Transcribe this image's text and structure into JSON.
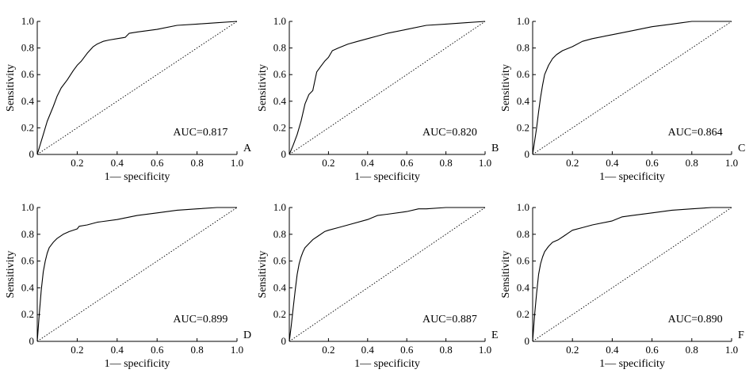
{
  "figure": {
    "panels": [
      "A",
      "B",
      "C",
      "D",
      "E",
      "F"
    ]
  },
  "chart_data": [
    {
      "type": "line",
      "panel_label": "A",
      "auc_label": "AUC=0.817",
      "xlabel": "1— specificity",
      "ylabel": "Sensitivity",
      "xlim": [
        0,
        1
      ],
      "ylim": [
        0,
        1
      ],
      "x_ticks": [
        "0.2",
        "0.4",
        "0.6",
        "0.8",
        "1.0"
      ],
      "y_ticks": [
        "0",
        "0.2",
        "0.4",
        "0.6",
        "0.8",
        "1.0"
      ],
      "grid": false,
      "series": [
        {
          "name": "ROC",
          "style": "solid",
          "x": [
            0,
            0.01,
            0.03,
            0.05,
            0.08,
            0.1,
            0.12,
            0.15,
            0.18,
            0.2,
            0.22,
            0.25,
            0.28,
            0.3,
            0.33,
            0.36,
            0.4,
            0.44,
            0.46,
            0.5,
            0.6,
            0.7,
            0.8,
            0.9,
            1.0
          ],
          "y": [
            0,
            0.05,
            0.15,
            0.25,
            0.36,
            0.44,
            0.5,
            0.56,
            0.63,
            0.67,
            0.7,
            0.76,
            0.81,
            0.83,
            0.85,
            0.86,
            0.87,
            0.88,
            0.91,
            0.92,
            0.94,
            0.97,
            0.98,
            0.99,
            1.0
          ]
        },
        {
          "name": "reference",
          "style": "dotted",
          "x": [
            0,
            1
          ],
          "y": [
            0,
            1
          ]
        }
      ]
    },
    {
      "type": "line",
      "panel_label": "B",
      "auc_label": "AUC=0.820",
      "xlabel": "1— specificity",
      "ylabel": "Sensitivity",
      "xlim": [
        0,
        1
      ],
      "ylim": [
        0,
        1
      ],
      "x_ticks": [
        "0.2",
        "0.4",
        "0.6",
        "0.8",
        "1.0"
      ],
      "y_ticks": [
        "0",
        "0.2",
        "0.4",
        "0.6",
        "0.8",
        "1.0"
      ],
      "grid": false,
      "series": [
        {
          "name": "ROC",
          "style": "solid",
          "x": [
            0,
            0.02,
            0.04,
            0.06,
            0.08,
            0.1,
            0.12,
            0.14,
            0.16,
            0.18,
            0.2,
            0.22,
            0.25,
            0.3,
            0.35,
            0.4,
            0.45,
            0.5,
            0.6,
            0.7,
            0.8,
            0.9,
            1.0
          ],
          "y": [
            0,
            0.07,
            0.15,
            0.25,
            0.38,
            0.45,
            0.48,
            0.62,
            0.66,
            0.7,
            0.73,
            0.78,
            0.8,
            0.83,
            0.85,
            0.87,
            0.89,
            0.91,
            0.94,
            0.97,
            0.98,
            0.99,
            1.0
          ]
        },
        {
          "name": "reference",
          "style": "dotted",
          "x": [
            0,
            1
          ],
          "y": [
            0,
            1
          ]
        }
      ]
    },
    {
      "type": "line",
      "panel_label": "C",
      "auc_label": "AUC=0.864",
      "xlabel": "1— specificity",
      "ylabel": "Sensitivity",
      "xlim": [
        0,
        1
      ],
      "ylim": [
        0,
        1
      ],
      "x_ticks": [
        "0.2",
        "0.4",
        "0.6",
        "0.8",
        "1.0"
      ],
      "y_ticks": [
        "0",
        "0.2",
        "0.4",
        "0.6",
        "0.8",
        "1.0"
      ],
      "grid": false,
      "series": [
        {
          "name": "ROC",
          "style": "solid",
          "x": [
            0,
            0.01,
            0.02,
            0.03,
            0.04,
            0.05,
            0.06,
            0.08,
            0.1,
            0.12,
            0.15,
            0.2,
            0.25,
            0.3,
            0.4,
            0.5,
            0.6,
            0.7,
            0.75,
            0.8,
            0.9,
            1.0
          ],
          "y": [
            0,
            0.1,
            0.2,
            0.32,
            0.43,
            0.52,
            0.6,
            0.67,
            0.72,
            0.75,
            0.78,
            0.81,
            0.85,
            0.87,
            0.9,
            0.93,
            0.96,
            0.98,
            0.99,
            1.0,
            1.0,
            1.0
          ]
        },
        {
          "name": "reference",
          "style": "dotted",
          "x": [
            0,
            1
          ],
          "y": [
            0,
            1
          ]
        }
      ]
    },
    {
      "type": "line",
      "panel_label": "D",
      "auc_label": "AUC=0.899",
      "xlabel": "1— specificity",
      "ylabel": "Sensitivity",
      "xlim": [
        0,
        1
      ],
      "ylim": [
        0,
        1
      ],
      "x_ticks": [
        "0.2",
        "0.4",
        "0.6",
        "0.8",
        "1.0"
      ],
      "y_ticks": [
        "0",
        "0.2",
        "0.4",
        "0.6",
        "0.8",
        "1.0"
      ],
      "grid": false,
      "series": [
        {
          "name": "ROC",
          "style": "solid",
          "x": [
            0,
            0.01,
            0.02,
            0.03,
            0.04,
            0.05,
            0.06,
            0.08,
            0.1,
            0.13,
            0.16,
            0.2,
            0.21,
            0.25,
            0.3,
            0.4,
            0.5,
            0.6,
            0.7,
            0.8,
            0.9,
            1.0
          ],
          "y": [
            0,
            0.2,
            0.38,
            0.52,
            0.6,
            0.66,
            0.7,
            0.74,
            0.77,
            0.8,
            0.82,
            0.84,
            0.86,
            0.87,
            0.89,
            0.91,
            0.94,
            0.96,
            0.98,
            0.99,
            1.0,
            1.0
          ]
        },
        {
          "name": "reference",
          "style": "dotted",
          "x": [
            0,
            1
          ],
          "y": [
            0,
            1
          ]
        }
      ]
    },
    {
      "type": "line",
      "panel_label": "E",
      "auc_label": "AUC=0.887",
      "xlabel": "1— specificity",
      "ylabel": "Sensitivity",
      "xlim": [
        0,
        1
      ],
      "ylim": [
        0,
        1
      ],
      "x_ticks": [
        "0.2",
        "0.4",
        "0.6",
        "0.8",
        "1.0"
      ],
      "y_ticks": [
        "0",
        "0.2",
        "0.4",
        "0.6",
        "0.8",
        "1.0"
      ],
      "grid": false,
      "series": [
        {
          "name": "ROC",
          "style": "solid",
          "x": [
            0,
            0.01,
            0.02,
            0.03,
            0.04,
            0.05,
            0.06,
            0.07,
            0.08,
            0.1,
            0.12,
            0.15,
            0.18,
            0.2,
            0.25,
            0.3,
            0.4,
            0.45,
            0.5,
            0.6,
            0.66,
            0.7,
            0.8,
            0.9,
            1.0
          ],
          "y": [
            0,
            0.12,
            0.25,
            0.38,
            0.5,
            0.58,
            0.63,
            0.67,
            0.7,
            0.73,
            0.76,
            0.79,
            0.82,
            0.83,
            0.85,
            0.87,
            0.91,
            0.94,
            0.95,
            0.97,
            0.99,
            0.99,
            1.0,
            1.0,
            1.0
          ]
        },
        {
          "name": "reference",
          "style": "dotted",
          "x": [
            0,
            1
          ],
          "y": [
            0,
            1
          ]
        }
      ]
    },
    {
      "type": "line",
      "panel_label": "F",
      "auc_label": "AUC=0.890",
      "xlabel": "1— specificity",
      "ylabel": "Sensitivity",
      "xlim": [
        0,
        1
      ],
      "ylim": [
        0,
        1
      ],
      "x_ticks": [
        "0.2",
        "0.4",
        "0.6",
        "0.8",
        "1.0"
      ],
      "y_ticks": [
        "0",
        "0.2",
        "0.4",
        "0.6",
        "0.8",
        "1.0"
      ],
      "grid": false,
      "series": [
        {
          "name": "ROC",
          "style": "solid",
          "x": [
            0,
            0.01,
            0.02,
            0.03,
            0.04,
            0.05,
            0.06,
            0.08,
            0.1,
            0.13,
            0.16,
            0.18,
            0.2,
            0.25,
            0.3,
            0.4,
            0.45,
            0.5,
            0.6,
            0.7,
            0.8,
            0.9,
            0.95,
            1.0
          ],
          "y": [
            0,
            0.2,
            0.36,
            0.5,
            0.58,
            0.63,
            0.67,
            0.71,
            0.74,
            0.76,
            0.79,
            0.81,
            0.83,
            0.85,
            0.87,
            0.9,
            0.93,
            0.94,
            0.96,
            0.98,
            0.99,
            1.0,
            1.0,
            1.0
          ]
        },
        {
          "name": "reference",
          "style": "dotted",
          "x": [
            0,
            1
          ],
          "y": [
            0,
            1
          ]
        }
      ]
    }
  ]
}
